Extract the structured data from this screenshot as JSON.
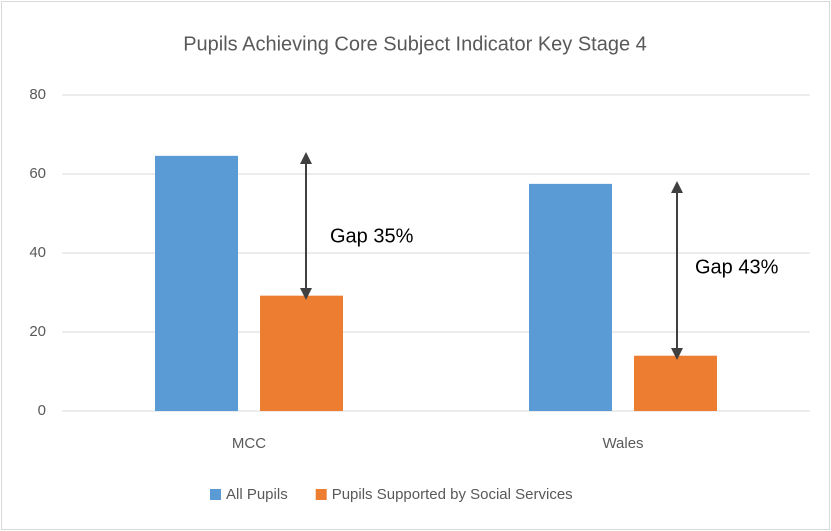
{
  "chart_data": {
    "type": "bar",
    "title": "Pupils Achieving Core Subject Indicator Key Stage 4",
    "categories": [
      "MCC",
      "Wales"
    ],
    "series": [
      {
        "name": "All Pupils",
        "color": "#5b9bd5",
        "values": [
          64.6,
          57.5
        ]
      },
      {
        "name": "Pupils Supported by Social Services",
        "color": "#ed7d31",
        "values": [
          29.2,
          14
        ]
      }
    ],
    "annotations": [
      "Gap 35%",
      "Gap 43%"
    ],
    "ylim": [
      0,
      80
    ],
    "yticks": [
      0,
      20,
      40,
      60,
      80
    ],
    "grid": true,
    "legend": "bottom"
  }
}
